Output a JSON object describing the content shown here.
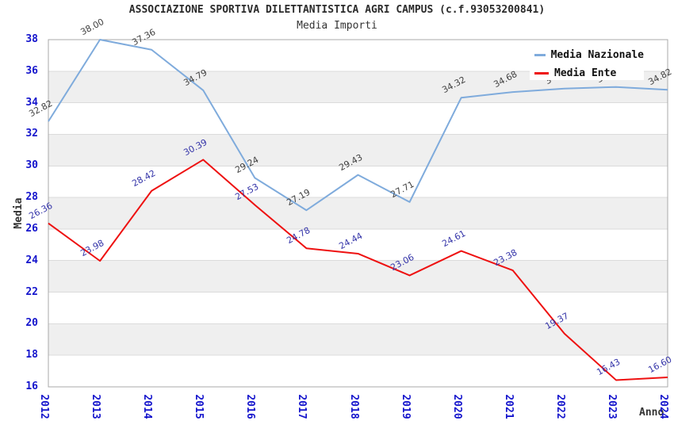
{
  "chart_data": {
    "type": "line",
    "title": "ASSOCIAZIONE SPORTIVA DILETTANTISTICA AGRI CAMPUS (c.f.93053200841)",
    "subtitle": "Media Importi",
    "xlabel": "Anno",
    "ylabel": "Media",
    "x": [
      2012,
      2013,
      2014,
      2015,
      2016,
      2017,
      2018,
      2019,
      2020,
      2021,
      2022,
      2023,
      2024
    ],
    "ylim": [
      16,
      38
    ],
    "y_tick_step": 2,
    "grid": "horizontal-bands",
    "legend_position": "top-right",
    "series": [
      {
        "name": "Media Nazionale",
        "color": "#7FABDC",
        "label_color": "#3f3f3f",
        "values": [
          32.82,
          38.0,
          37.36,
          34.79,
          29.24,
          27.19,
          29.43,
          27.71,
          34.32,
          34.68,
          34.9,
          35.0,
          34.82
        ],
        "point_labels": [
          "32.82",
          "38.00",
          "37.36",
          "34.79",
          "29.24",
          "27.19",
          "29.43",
          "27.71",
          "34.32",
          "34.68",
          "34.90",
          "35.00",
          "34.82"
        ]
      },
      {
        "name": "Media Ente",
        "color": "#ee1111",
        "label_color": "#3333a8",
        "values": [
          26.36,
          23.98,
          28.42,
          30.39,
          27.53,
          24.78,
          24.44,
          23.06,
          24.61,
          23.38,
          19.37,
          16.43,
          16.6
        ],
        "point_labels": [
          "26.36",
          "23.98",
          "28.42",
          "30.39",
          "27.53",
          "24.78",
          "24.44",
          "23.06",
          "24.61",
          "23.38",
          "19.37",
          "16.43",
          "16.60"
        ]
      }
    ],
    "style": {
      "band_color": "#efefef",
      "grid_color": "#dbdbdb",
      "border_color": "#a9a9a9",
      "tick_label_color": "#1414cc",
      "axis_title_color": "#333333",
      "title_color": "#2b2b2b",
      "legend_bg": "#ffffff",
      "background": "#ffffff"
    }
  }
}
